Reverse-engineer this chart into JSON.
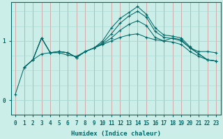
{
  "xlabel": "Humidex (Indice chaleur)",
  "background_color": "#cceee8",
  "grid_color_v": "#d4a0a0",
  "grid_color_h": "#a8d8d0",
  "line_color": "#006868",
  "xlim": [
    -0.5,
    23.5
  ],
  "ylim": [
    -0.25,
    1.65
  ],
  "yticks": [
    0,
    1
  ],
  "xticks": [
    0,
    1,
    2,
    3,
    4,
    5,
    6,
    7,
    8,
    9,
    10,
    11,
    12,
    13,
    14,
    15,
    16,
    17,
    18,
    19,
    20,
    21,
    22,
    23
  ],
  "line1_x": [
    0,
    1,
    2,
    3,
    4,
    5,
    6,
    7,
    8,
    9,
    10,
    11,
    12,
    13,
    14,
    15,
    16,
    17,
    18,
    19,
    20,
    21,
    22,
    23
  ],
  "line1_y": [
    0.1,
    0.55,
    0.68,
    0.78,
    0.8,
    0.8,
    0.76,
    0.74,
    0.82,
    0.88,
    0.94,
    1.0,
    1.06,
    1.1,
    1.12,
    1.06,
    1.02,
    1.0,
    1.05,
    1.02,
    0.88,
    0.82,
    0.82,
    0.8
  ],
  "line2_x": [
    1,
    2,
    3,
    4,
    5,
    6,
    7,
    8,
    9,
    10,
    11,
    12,
    13,
    14,
    15,
    16,
    17,
    18,
    19,
    20,
    21,
    22,
    23
  ],
  "line2_y": [
    0.55,
    0.68,
    1.05,
    0.8,
    0.82,
    0.8,
    0.72,
    0.82,
    0.88,
    0.95,
    1.05,
    1.18,
    1.28,
    1.34,
    1.26,
    1.06,
    1.0,
    0.98,
    0.94,
    0.82,
    0.74,
    0.68,
    0.66
  ],
  "line3_x": [
    1,
    2,
    3,
    4,
    5,
    6,
    7,
    8,
    9,
    10,
    11,
    12,
    13,
    14,
    15,
    16,
    17,
    18,
    19,
    20,
    21,
    22,
    23
  ],
  "line3_y": [
    0.55,
    0.68,
    1.05,
    0.8,
    0.82,
    0.8,
    0.72,
    0.82,
    0.88,
    0.97,
    1.12,
    1.3,
    1.42,
    1.5,
    1.4,
    1.16,
    1.06,
    1.04,
    1.0,
    0.88,
    0.78,
    0.68,
    0.66
  ],
  "line4_x": [
    1,
    2,
    3,
    4,
    5,
    6,
    7,
    8,
    9,
    10,
    11,
    12,
    13,
    14,
    15,
    16,
    17,
    18,
    19,
    20,
    21,
    22,
    23
  ],
  "line4_y": [
    0.55,
    0.68,
    1.05,
    0.8,
    0.82,
    0.8,
    0.72,
    0.82,
    0.88,
    1.0,
    1.22,
    1.38,
    1.48,
    1.58,
    1.45,
    1.22,
    1.1,
    1.08,
    1.05,
    0.9,
    0.78,
    0.68,
    0.66
  ]
}
